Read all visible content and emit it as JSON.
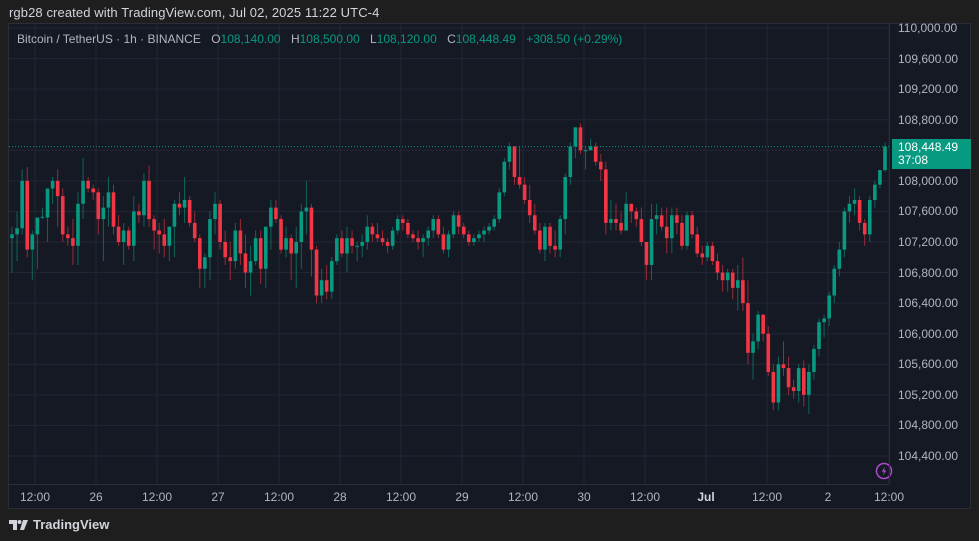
{
  "attribution": "rgb28 created with TradingView.com, Jul 02, 2025 11:22 UTC-4",
  "legend": {
    "symbol": "Bitcoin / TetherUS · 1h · BINANCE",
    "o_label": "O",
    "o_value": "108,140.00",
    "h_label": "H",
    "h_value": "108,500.00",
    "l_label": "L",
    "l_value": "108,120.00",
    "c_label": "C",
    "c_value": "108,448.49",
    "change": "+308.50 (+0.29%)"
  },
  "last_price": {
    "value": "108,448.49",
    "countdown": "37:08"
  },
  "footer": {
    "brand": "TradingView"
  },
  "colors": {
    "up": "#089981",
    "down": "#f23645",
    "bg": "#151924",
    "grid": "#232733",
    "purple_icon": "#b04ad0"
  },
  "chart_data": {
    "type": "candlestick",
    "title": "Bitcoin / TetherUS · 1h · BINANCE",
    "xlabel": "",
    "ylabel": "",
    "ylim": [
      104200,
      110150
    ],
    "y_ticks": [
      "110,000.00",
      "109,600.00",
      "109,200.00",
      "108,800.00",
      "108,400.00",
      "108,000.00",
      "107,600.00",
      "107,200.00",
      "106,800.00",
      "106,400.00",
      "106,000.00",
      "105,600.00",
      "105,200.00",
      "104,800.00",
      "104,400.00"
    ],
    "x_ticks": [
      "12:00",
      "26",
      "12:00",
      "27",
      "12:00",
      "28",
      "12:00",
      "29",
      "12:00",
      "30",
      "12:00",
      "Jul",
      "12:00",
      "2",
      "12:00"
    ],
    "grid": true,
    "last_price": 108448.49,
    "ohlc": [
      [
        107250,
        107400,
        106800,
        107300
      ],
      [
        107300,
        107600,
        106950,
        107380
      ],
      [
        107380,
        108150,
        107300,
        108000
      ],
      [
        108000,
        108180,
        107000,
        107100
      ],
      [
        107100,
        107350,
        106700,
        107300
      ],
      [
        107300,
        107500,
        106850,
        107520
      ],
      [
        107520,
        107650,
        107500,
        107530
      ],
      [
        107520,
        107850,
        107200,
        107900
      ],
      [
        107900,
        108050,
        107700,
        108000
      ],
      [
        108000,
        108150,
        107400,
        107800
      ],
      [
        107800,
        107900,
        107200,
        107300
      ],
      [
        107300,
        107400,
        107150,
        107250
      ],
      [
        107250,
        107500,
        106900,
        107150
      ],
      [
        107150,
        107850,
        106900,
        107700
      ],
      [
        107700,
        108300,
        107500,
        108000
      ],
      [
        108000,
        108050,
        107850,
        107900
      ],
      [
        107900,
        107950,
        107750,
        107850
      ],
      [
        107850,
        107900,
        107300,
        107500
      ],
      [
        107500,
        107800,
        106950,
        107650
      ],
      [
        107650,
        108050,
        107400,
        107850
      ],
      [
        107850,
        107950,
        107300,
        107400
      ],
      [
        107400,
        107550,
        107150,
        107200
      ],
      [
        107200,
        107450,
        106900,
        107350
      ],
      [
        107350,
        107400,
        107100,
        107150
      ],
      [
        107150,
        107800,
        106950,
        107600
      ],
      [
        107600,
        107700,
        107450,
        107550
      ],
      [
        107550,
        108100,
        107400,
        108000
      ],
      [
        108000,
        108200,
        107400,
        107500
      ],
      [
        107500,
        107550,
        107100,
        107350
      ],
      [
        107350,
        107450,
        107050,
        107300
      ],
      [
        107300,
        107500,
        107000,
        107150
      ],
      [
        107150,
        107400,
        106950,
        107400
      ],
      [
        107400,
        107750,
        107000,
        107700
      ],
      [
        107700,
        107850,
        107550,
        107650
      ],
      [
        107650,
        108050,
        107450,
        107750
      ],
      [
        107750,
        107800,
        107400,
        107450
      ],
      [
        107450,
        107600,
        107200,
        107250
      ],
      [
        107250,
        107300,
        106600,
        106850
      ],
      [
        106850,
        107050,
        106600,
        107000
      ],
      [
        107000,
        107600,
        106700,
        107500
      ],
      [
        107500,
        107850,
        107300,
        107700
      ],
      [
        107700,
        107750,
        107100,
        107200
      ],
      [
        107200,
        107350,
        106900,
        107000
      ],
      [
        107000,
        107200,
        106700,
        106950
      ],
      [
        106950,
        107450,
        106850,
        107350
      ],
      [
        107350,
        107500,
        106900,
        107050
      ],
      [
        107050,
        107300,
        106600,
        106800
      ],
      [
        106800,
        107150,
        106500,
        106950
      ],
      [
        106950,
        107350,
        106900,
        107250
      ],
      [
        107250,
        107350,
        106650,
        106850
      ],
      [
        106850,
        107400,
        106600,
        107400
      ],
      [
        107400,
        107750,
        107100,
        107650
      ],
      [
        107650,
        107750,
        107450,
        107500
      ],
      [
        107500,
        107550,
        107050,
        107100
      ],
      [
        107100,
        107400,
        107000,
        107250
      ],
      [
        107250,
        107300,
        106700,
        107050
      ],
      [
        107050,
        107400,
        106600,
        107200
      ],
      [
        107200,
        107700,
        106850,
        107600
      ],
      [
        107600,
        108000,
        107300,
        107650
      ],
      [
        107650,
        107700,
        106750,
        107100
      ],
      [
        107100,
        107150,
        106400,
        106500
      ],
      [
        106500,
        106850,
        106400,
        106700
      ],
      [
        106700,
        106900,
        106450,
        106550
      ],
      [
        106550,
        107000,
        106450,
        106950
      ],
      [
        106950,
        107300,
        106900,
        107250
      ],
      [
        107250,
        107350,
        107000,
        107050
      ],
      [
        107050,
        107400,
        106800,
        107250
      ],
      [
        107250,
        107350,
        107050,
        107150
      ],
      [
        107150,
        107200,
        106950,
        107150
      ],
      [
        107150,
        107300,
        107000,
        107200
      ],
      [
        107200,
        107550,
        107100,
        107400
      ],
      [
        107400,
        107450,
        107200,
        107300
      ],
      [
        107300,
        107450,
        107200,
        107250
      ],
      [
        107250,
        107350,
        107150,
        107200
      ],
      [
        107200,
        107250,
        107050,
        107150
      ],
      [
        107150,
        107400,
        107100,
        107350
      ],
      [
        107350,
        107550,
        107300,
        107500
      ],
      [
        107500,
        107550,
        107350,
        107450
      ],
      [
        107450,
        107500,
        107250,
        107300
      ],
      [
        107300,
        107350,
        107200,
        107250
      ],
      [
        107250,
        107350,
        107100,
        107200
      ],
      [
        107200,
        107300,
        107000,
        107250
      ],
      [
        107250,
        107400,
        107150,
        107350
      ],
      [
        107350,
        107550,
        107250,
        107500
      ],
      [
        107500,
        107550,
        107250,
        107300
      ],
      [
        107300,
        107400,
        107050,
        107100
      ],
      [
        107100,
        107350,
        107000,
        107300
      ],
      [
        107300,
        107600,
        107250,
        107550
      ],
      [
        107550,
        107600,
        107300,
        107400
      ],
      [
        107400,
        107450,
        107250,
        107300
      ],
      [
        107300,
        107350,
        107150,
        107200
      ],
      [
        107200,
        107300,
        107150,
        107250
      ],
      [
        107250,
        107350,
        107200,
        107300
      ],
      [
        107300,
        107400,
        107200,
        107350
      ],
      [
        107350,
        107450,
        107300,
        107400
      ],
      [
        107400,
        107550,
        107350,
        107500
      ],
      [
        107500,
        107900,
        107450,
        107850
      ],
      [
        107850,
        108300,
        107800,
        108250
      ],
      [
        108250,
        108500,
        108150,
        108450
      ],
      [
        108450,
        108450,
        107950,
        108050
      ],
      [
        108050,
        108450,
        107900,
        107950
      ],
      [
        107950,
        108050,
        107700,
        107750
      ],
      [
        107750,
        107950,
        107450,
        107550
      ],
      [
        107550,
        107700,
        107300,
        107350
      ],
      [
        107350,
        107450,
        107050,
        107100
      ],
      [
        107100,
        107450,
        106950,
        107400
      ],
      [
        107400,
        107450,
        107050,
        107150
      ],
      [
        107150,
        107350,
        107000,
        107100
      ],
      [
        107100,
        107550,
        107000,
        107500
      ],
      [
        107500,
        108100,
        107300,
        108050
      ],
      [
        108050,
        108500,
        107950,
        108450
      ],
      [
        108450,
        108700,
        108300,
        108700
      ],
      [
        108700,
        108750,
        108350,
        108400
      ],
      [
        108400,
        108450,
        108150,
        108400
      ],
      [
        108400,
        108550,
        108400,
        108450
      ],
      [
        108450,
        108500,
        108200,
        108250
      ],
      [
        108250,
        108350,
        108000,
        108150
      ],
      [
        108150,
        108250,
        107300,
        107450
      ],
      [
        107450,
        107750,
        107350,
        107500
      ],
      [
        107500,
        107700,
        107350,
        107450
      ],
      [
        107450,
        107600,
        107300,
        107350
      ],
      [
        107350,
        107850,
        107350,
        107700
      ],
      [
        107700,
        107700,
        107450,
        107600
      ],
      [
        107600,
        107650,
        107400,
        107500
      ],
      [
        107500,
        107650,
        107150,
        107200
      ],
      [
        107200,
        107200,
        106700,
        106900
      ],
      [
        106900,
        107700,
        106700,
        107500
      ],
      [
        107500,
        107700,
        107300,
        107550
      ],
      [
        107550,
        107650,
        107350,
        107400
      ],
      [
        107400,
        107650,
        107050,
        107250
      ],
      [
        107250,
        107650,
        107050,
        107550
      ],
      [
        107550,
        107650,
        107300,
        107450
      ],
      [
        107450,
        107550,
        107100,
        107150
      ],
      [
        107150,
        107600,
        107100,
        107550
      ],
      [
        107550,
        107600,
        107250,
        107300
      ],
      [
        107300,
        107400,
        107000,
        107050
      ],
      [
        107050,
        107150,
        106900,
        107000
      ],
      [
        107000,
        107200,
        106950,
        107150
      ],
      [
        107150,
        107200,
        106900,
        106950
      ],
      [
        106950,
        107050,
        106700,
        106800
      ],
      [
        106800,
        106900,
        106550,
        106700
      ],
      [
        106700,
        106850,
        106550,
        106800
      ],
      [
        106800,
        106850,
        106450,
        106600
      ],
      [
        106600,
        106900,
        106300,
        106700
      ],
      [
        106700,
        107000,
        106300,
        106400
      ],
      [
        106400,
        106700,
        105600,
        105750
      ],
      [
        105750,
        106000,
        105400,
        105900
      ],
      [
        105900,
        106300,
        105800,
        106250
      ],
      [
        106250,
        106250,
        105900,
        106000
      ],
      [
        106000,
        106100,
        105450,
        105500
      ],
      [
        105500,
        105600,
        105000,
        105100
      ],
      [
        105100,
        105700,
        105000,
        105600
      ],
      [
        105600,
        105900,
        105450,
        105550
      ],
      [
        105550,
        105700,
        105200,
        105300
      ],
      [
        105300,
        105400,
        105150,
        105250
      ],
      [
        105250,
        105600,
        105100,
        105550
      ],
      [
        105550,
        105650,
        105050,
        105200
      ],
      [
        105200,
        105600,
        104950,
        105500
      ],
      [
        105500,
        105850,
        105400,
        105800
      ],
      [
        105800,
        106200,
        105700,
        106150
      ],
      [
        106150,
        106250,
        105950,
        106200
      ],
      [
        106200,
        106550,
        106100,
        106500
      ],
      [
        106500,
        106900,
        106400,
        106850
      ],
      [
        106850,
        107200,
        106750,
        107100
      ],
      [
        107100,
        107650,
        107000,
        107600
      ],
      [
        107600,
        107800,
        107450,
        107700
      ],
      [
        107700,
        107900,
        107550,
        107750
      ],
      [
        107750,
        107800,
        107350,
        107450
      ],
      [
        107450,
        107500,
        107150,
        107300
      ],
      [
        107300,
        107800,
        107200,
        107750
      ],
      [
        107750,
        108000,
        107650,
        107950
      ],
      [
        107950,
        108140,
        107900,
        108140
      ],
      [
        108140,
        108500,
        108120,
        108448.49
      ]
    ]
  }
}
